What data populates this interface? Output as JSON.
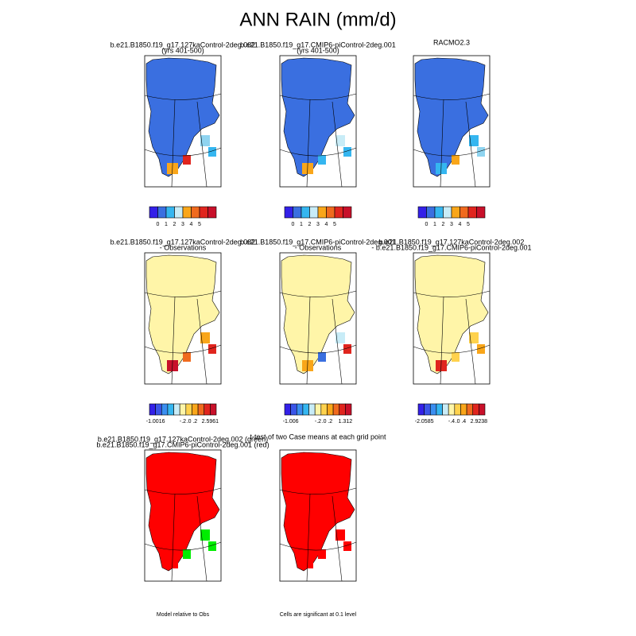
{
  "title": "ANN RAIN (mm/d)",
  "panels": [
    {
      "title": [
        "b.e21.B1850.f19_g17.127kaControl-2deg.002",
        "(yrs 401-500)"
      ],
      "map_fill": "#3a6fe0",
      "accents": [
        "#8fd4f0",
        "#35b6f0",
        "#f9a61a",
        "#e0251e"
      ],
      "colorbar": {
        "labels": [
          "0",
          "1",
          "2",
          "3",
          "4",
          "5"
        ],
        "colors": [
          "#3320e8",
          "#3a6fe0",
          "#35b6f0",
          "#c8ecf7",
          "#f9a61a",
          "#f06a1e",
          "#e0251e",
          "#c8102a"
        ]
      }
    },
    {
      "title": [
        "b.e21.B1850.f19_g17.CMIP6-piControl-2deg.001",
        "(yrs 401-500)"
      ],
      "map_fill": "#3a6fe0",
      "accents": [
        "#c8ecf7",
        "#35b6f0",
        "#f9a61a",
        "#35b6f0"
      ],
      "colorbar": {
        "labels": [
          "0",
          "1",
          "2",
          "3",
          "4",
          "5"
        ],
        "colors": [
          "#3320e8",
          "#3a6fe0",
          "#35b6f0",
          "#c8ecf7",
          "#f9a61a",
          "#f06a1e",
          "#e0251e",
          "#c8102a"
        ]
      }
    },
    {
      "title": [
        "RACMO2.3"
      ],
      "map_fill": "#3a6fe0",
      "accents": [
        "#35b6f0",
        "#8fd4f0",
        "#35b6f0",
        "#f9a61a"
      ],
      "colorbar": {
        "labels": [
          "0",
          "1",
          "2",
          "3",
          "4",
          "5"
        ],
        "colors": [
          "#3320e8",
          "#3a6fe0",
          "#35b6f0",
          "#c8ecf7",
          "#f9a61a",
          "#f06a1e",
          "#e0251e",
          "#c8102a"
        ]
      }
    },
    {
      "title": [
        "b.e21.B1850.f19_g17.127kaControl-2deg.002",
        "- Observations"
      ],
      "map_fill": "#fff5a8",
      "accents": [
        "#f9a61a",
        "#e0251e",
        "#c8102a",
        "#f06a1e"
      ],
      "colorbar": {
        "labels": [
          "-1.0016",
          "-.2",
          ".0",
          ".2",
          "2.5961"
        ],
        "colors": [
          "#3320e8",
          "#3a55e8",
          "#3a8ef0",
          "#35b6f0",
          "#c8ecf7",
          "#fff5a8",
          "#ffd24d",
          "#f9a61a",
          "#f06a1e",
          "#e0251e",
          "#c8102a"
        ]
      }
    },
    {
      "title": [
        "b.e21.B1850.f19_g17.CMIP6-piControl-2deg.001",
        "- Observations"
      ],
      "map_fill": "#fff5a8",
      "accents": [
        "#c8ecf7",
        "#e0251e",
        "#f9a61a",
        "#3a6fe0"
      ],
      "colorbar": {
        "labels": [
          "-1.006",
          "-.2",
          ".0",
          ".2",
          "1.312"
        ],
        "colors": [
          "#3320e8",
          "#3a55e8",
          "#3a8ef0",
          "#35b6f0",
          "#c8ecf7",
          "#fff5a8",
          "#ffd24d",
          "#f9a61a",
          "#f06a1e",
          "#e0251e",
          "#c8102a"
        ]
      }
    },
    {
      "title": [
        "b.e21.B1850.f19_g17.127kaControl-2deg.002",
        "- b.e21.B1850.f19_g17.CMIP6-piControl-2deg.001"
      ],
      "map_fill": "#fff5a8",
      "accents": [
        "#ffd24d",
        "#f9a61a",
        "#e0251e",
        "#ffd24d"
      ],
      "colorbar": {
        "labels": [
          "-2.0585",
          "-.4",
          ".0",
          ".4",
          "2.9238"
        ],
        "colors": [
          "#3320e8",
          "#3a55e8",
          "#3a8ef0",
          "#35b6f0",
          "#c8ecf7",
          "#fff5a8",
          "#ffd24d",
          "#f9a61a",
          "#f06a1e",
          "#e0251e",
          "#c8102a"
        ]
      }
    },
    {
      "title": [
        "b.e21.B1850.f19_g17.127kaControl-2deg.002 (green)",
        "b.e21.B1850.f19_g17.CMIP6-piControl-2deg.001 (red)"
      ],
      "map_fill": "#ff0000",
      "accents": [
        "#00ee00",
        "#00ee00",
        "#ff0000",
        "#00ee00"
      ],
      "note": "Model relative to Obs"
    },
    {
      "title": [
        "t-test of two Case means at each grid point"
      ],
      "map_fill": "#ff0000",
      "accents": [
        "#ff0000",
        "#ff0000",
        "#ff0000",
        "#ff0000"
      ],
      "note": "Cells are significant at 0.1 level"
    }
  ]
}
